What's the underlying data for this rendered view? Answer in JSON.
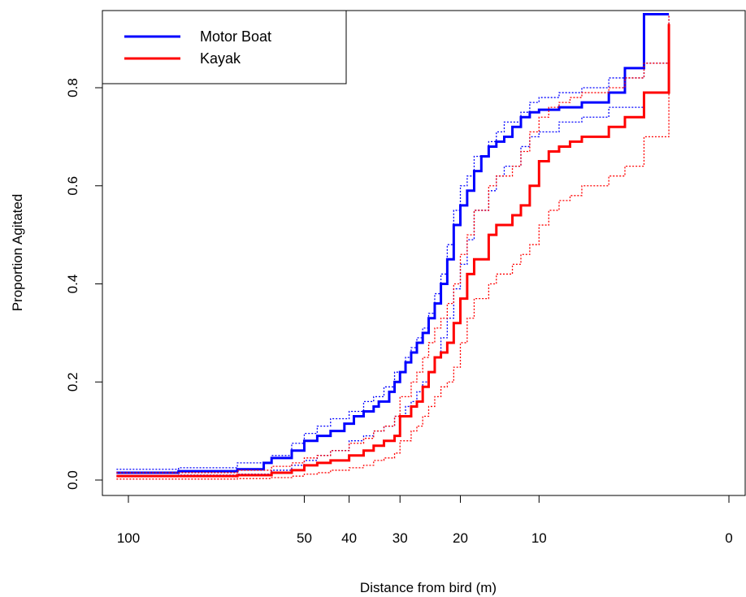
{
  "chart_data": {
    "type": "line",
    "xlabel": "Distance from bird (m)",
    "ylabel": "Proportion Agitated",
    "x_scale": "sqrt",
    "x_reversed": true,
    "xlim": [
      104,
      0
    ],
    "ylim": [
      -0.02,
      0.96
    ],
    "x_ticks": [
      100,
      50,
      40,
      30,
      20,
      10,
      0
    ],
    "y_ticks": [
      0.0,
      0.2,
      0.4,
      0.6,
      0.8
    ],
    "y_tick_labels": [
      "0.0",
      "0.2",
      "0.4",
      "0.6",
      "0.8"
    ],
    "grid": false,
    "legend": {
      "position": "top-left",
      "entries": [
        "Motor Boat",
        "Kayak"
      ]
    },
    "series": [
      {
        "name": "Motor Boat",
        "color": "#0000ff",
        "line": "solid",
        "x": [
          104,
          94,
          84,
          67,
          60,
          58,
          53,
          50,
          47,
          44,
          41,
          39,
          37,
          35,
          34,
          32,
          31,
          30,
          29,
          28,
          27,
          26,
          25,
          24,
          23,
          22,
          21,
          20,
          19,
          18,
          17,
          16,
          15,
          14,
          13,
          12,
          11,
          10,
          9,
          8,
          6,
          4,
          3,
          2,
          1
        ],
        "y": [
          0.015,
          0.015,
          0.018,
          0.022,
          0.035,
          0.045,
          0.06,
          0.08,
          0.09,
          0.1,
          0.115,
          0.13,
          0.14,
          0.15,
          0.16,
          0.18,
          0.2,
          0.22,
          0.24,
          0.26,
          0.28,
          0.3,
          0.33,
          0.36,
          0.4,
          0.45,
          0.52,
          0.56,
          0.59,
          0.63,
          0.66,
          0.68,
          0.69,
          0.7,
          0.72,
          0.74,
          0.75,
          0.755,
          0.755,
          0.76,
          0.77,
          0.79,
          0.84,
          0.95,
          0.95
        ]
      },
      {
        "name": "Motor Boat upper CI",
        "color": "#0000ff",
        "line": "dotted",
        "x": [
          104,
          84,
          67,
          58,
          53,
          50,
          47,
          44,
          40,
          37,
          35,
          33,
          31,
          29,
          28,
          27,
          26,
          25,
          24,
          23,
          22,
          21,
          20,
          19,
          18,
          16,
          15,
          14,
          12,
          11,
          10,
          8,
          6,
          4,
          2,
          1
        ],
        "y": [
          0.022,
          0.025,
          0.035,
          0.05,
          0.075,
          0.095,
          0.11,
          0.125,
          0.14,
          0.16,
          0.17,
          0.19,
          0.22,
          0.25,
          0.27,
          0.29,
          0.31,
          0.34,
          0.38,
          0.42,
          0.48,
          0.55,
          0.6,
          0.62,
          0.66,
          0.69,
          0.71,
          0.73,
          0.75,
          0.77,
          0.78,
          0.79,
          0.8,
          0.82,
          0.85,
          0.95
        ]
      },
      {
        "name": "Motor Boat lower CI",
        "color": "#0000ff",
        "line": "dotted",
        "x": [
          104,
          84,
          67,
          58,
          53,
          50,
          47,
          44,
          40,
          37,
          35,
          33,
          31,
          29,
          28,
          27,
          26,
          25,
          24,
          23,
          22,
          21,
          20,
          19,
          18,
          16,
          15,
          14,
          12,
          11,
          10,
          8,
          6,
          4,
          2,
          1
        ],
        "y": [
          0.008,
          0.01,
          0.012,
          0.02,
          0.03,
          0.04,
          0.05,
          0.06,
          0.08,
          0.09,
          0.1,
          0.11,
          0.13,
          0.15,
          0.16,
          0.18,
          0.2,
          0.22,
          0.25,
          0.29,
          0.33,
          0.39,
          0.44,
          0.49,
          0.55,
          0.59,
          0.62,
          0.64,
          0.68,
          0.7,
          0.71,
          0.73,
          0.74,
          0.76,
          0.79,
          0.93
        ]
      },
      {
        "name": "Kayak",
        "color": "#ff0000",
        "line": "solid",
        "x": [
          104,
          67,
          58,
          53,
          50,
          47,
          44,
          40,
          37,
          35,
          33,
          31,
          30,
          28,
          27,
          26,
          25,
          24,
          23,
          22,
          21,
          20,
          19,
          18,
          16,
          15,
          13,
          12,
          11,
          10,
          9,
          8,
          7,
          6,
          4,
          3,
          2,
          1
        ],
        "y": [
          0.008,
          0.01,
          0.015,
          0.02,
          0.03,
          0.035,
          0.04,
          0.05,
          0.06,
          0.07,
          0.08,
          0.09,
          0.13,
          0.15,
          0.16,
          0.19,
          0.22,
          0.25,
          0.26,
          0.28,
          0.32,
          0.37,
          0.42,
          0.45,
          0.5,
          0.52,
          0.54,
          0.56,
          0.6,
          0.65,
          0.67,
          0.68,
          0.69,
          0.7,
          0.72,
          0.74,
          0.79,
          0.93
        ]
      },
      {
        "name": "Kayak upper CI",
        "color": "#ff0000",
        "line": "dotted",
        "x": [
          104,
          67,
          58,
          53,
          50,
          47,
          44,
          40,
          37,
          35,
          33,
          31,
          30,
          28,
          27,
          26,
          25,
          24,
          23,
          22,
          21,
          20,
          19,
          18,
          16,
          15,
          13,
          12,
          11,
          10,
          9,
          8,
          7,
          6,
          4,
          3,
          2,
          1
        ],
        "y": [
          0.015,
          0.02,
          0.028,
          0.035,
          0.045,
          0.05,
          0.06,
          0.075,
          0.085,
          0.1,
          0.11,
          0.13,
          0.17,
          0.2,
          0.22,
          0.25,
          0.28,
          0.31,
          0.33,
          0.36,
          0.4,
          0.46,
          0.5,
          0.55,
          0.6,
          0.62,
          0.64,
          0.67,
          0.71,
          0.74,
          0.76,
          0.77,
          0.78,
          0.79,
          0.8,
          0.82,
          0.85,
          0.95
        ]
      },
      {
        "name": "Kayak lower CI",
        "color": "#ff0000",
        "line": "dotted",
        "x": [
          104,
          67,
          58,
          53,
          50,
          47,
          44,
          40,
          37,
          35,
          33,
          31,
          30,
          28,
          27,
          26,
          25,
          24,
          23,
          22,
          21,
          20,
          19,
          18,
          16,
          15,
          13,
          12,
          11,
          10,
          9,
          8,
          7,
          6,
          4,
          3,
          2,
          1
        ],
        "y": [
          0.002,
          0.003,
          0.005,
          0.008,
          0.012,
          0.015,
          0.02,
          0.025,
          0.03,
          0.04,
          0.045,
          0.055,
          0.08,
          0.1,
          0.11,
          0.13,
          0.15,
          0.17,
          0.19,
          0.2,
          0.23,
          0.28,
          0.33,
          0.37,
          0.4,
          0.42,
          0.44,
          0.46,
          0.48,
          0.52,
          0.55,
          0.57,
          0.58,
          0.6,
          0.62,
          0.64,
          0.7,
          0.9
        ]
      }
    ]
  }
}
